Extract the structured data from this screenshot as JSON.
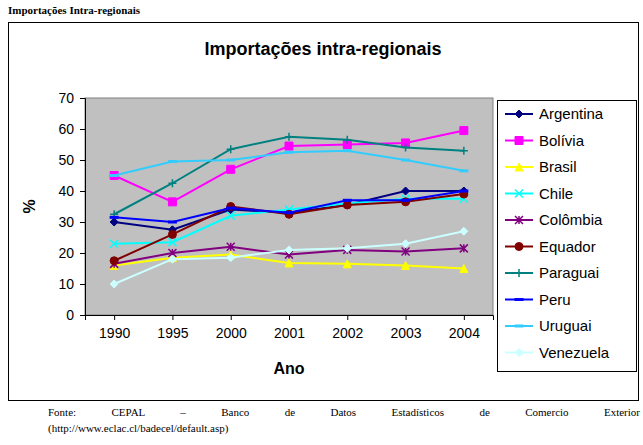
{
  "header": "Importações Intra-regionais",
  "source": [
    "Fonte: CEPAL – Banco de Datos Estadísticos de Comercio Exterior",
    "(http://www.eclac.cl/badecel/default.asp)"
  ],
  "chart_data": {
    "type": "line",
    "title": "Importações intra-regionais",
    "x_label": "Ano",
    "y_label": "%",
    "categories": [
      "1990",
      "1995",
      "2000",
      "2001",
      "2002",
      "2003",
      "2004"
    ],
    "ylim": [
      0,
      70
    ],
    "yticks": [
      0,
      10,
      20,
      30,
      40,
      50,
      60,
      70
    ],
    "grid": false,
    "legend": "right",
    "series": [
      {
        "name": "Argentina",
        "color": "#000080",
        "marker": "diamond",
        "line_style": "solid",
        "values": [
          30,
          27.5,
          34,
          33,
          35.5,
          40,
          40
        ]
      },
      {
        "name": "Bolívia",
        "color": "#FF00FF",
        "marker": "square",
        "line_style": "solid",
        "values": [
          45,
          36.5,
          47,
          54.5,
          55,
          55.5,
          59.5
        ]
      },
      {
        "name": "Brasil",
        "color": "#FFFF00",
        "marker": "triangle",
        "line_style": "solid",
        "values": [
          16,
          18.5,
          19.5,
          16.8,
          16.5,
          16,
          15
        ]
      },
      {
        "name": "Chile",
        "color": "#00FFFF",
        "marker": "x",
        "line_style": "solid",
        "values": [
          23,
          23.5,
          32,
          34,
          36,
          37.5,
          37.5
        ]
      },
      {
        "name": "Colômbia",
        "color": "#800080",
        "marker": "asterisk",
        "line_style": "solid",
        "values": [
          16.5,
          20,
          22,
          19.5,
          21,
          20.5,
          21.5
        ]
      },
      {
        "name": "Equador",
        "color": "#800000",
        "marker": "circle",
        "line_style": "solid",
        "values": [
          17.5,
          26,
          35,
          32.5,
          35.5,
          36.5,
          39
        ]
      },
      {
        "name": "Paraguai",
        "color": "#008080",
        "marker": "plus",
        "line_style": "solid",
        "values": [
          32.5,
          42.5,
          53.5,
          57.5,
          56.5,
          54,
          53
        ]
      },
      {
        "name": "Peru",
        "color": "#0000FF",
        "marker": "dash",
        "line_style": "solid",
        "values": [
          31.5,
          30,
          34.5,
          33,
          37,
          37,
          40
        ]
      },
      {
        "name": "Uruguai",
        "color": "#33CCFF",
        "marker": "dash",
        "line_style": "solid",
        "values": [
          45,
          49.5,
          50,
          52.5,
          53,
          50,
          46.5
        ]
      },
      {
        "name": "Venezuela",
        "color": "#CCFFFF",
        "marker": "diamond",
        "line_style": "solid",
        "values": [
          10,
          18,
          18.5,
          21,
          21.5,
          23,
          27
        ]
      }
    ]
  }
}
